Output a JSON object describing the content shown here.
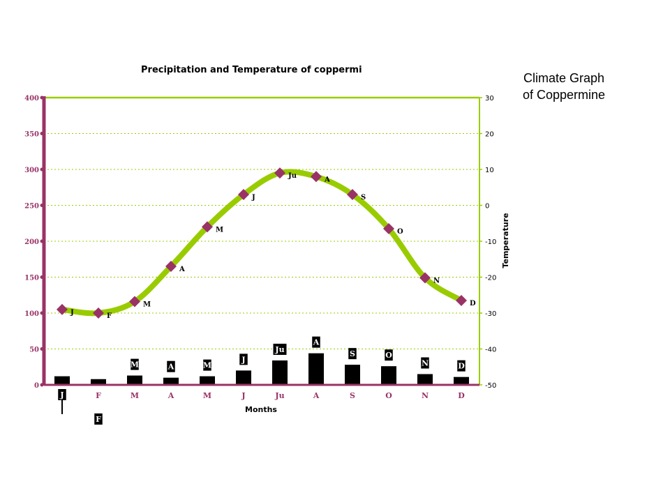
{
  "slide": {
    "side_title_line1": "Climate Graph",
    "side_title_line2": "of Coppermine"
  },
  "chart_data": {
    "type": "bar+line",
    "title": "Precipitation and Temperature of coppermi",
    "xlabel": "Months",
    "ylabel": "",
    "y2label": "Temperature",
    "categories": [
      "J",
      "F",
      "M",
      "A",
      "M",
      "J",
      "Ju",
      "A",
      "S",
      "O",
      "N",
      "D"
    ],
    "ylim": [
      0,
      400
    ],
    "y_ticks": [
      0,
      50,
      100,
      150,
      200,
      250,
      300,
      350,
      400
    ],
    "y2lim": [
      -50,
      30
    ],
    "y2_ticks": [
      -50,
      -40,
      -30,
      -20,
      -10,
      0,
      10,
      20,
      30
    ],
    "grid": true,
    "bar_labels": [
      "J",
      "F",
      "M",
      "A",
      "M",
      "J",
      "Ju",
      "A",
      "S",
      "O",
      "N",
      "D"
    ],
    "point_labels": [
      "J",
      "F",
      "M",
      "A",
      "M",
      "J",
      "Ju",
      "A",
      "S",
      "O",
      "N",
      "D"
    ],
    "series": [
      {
        "kind": "bar",
        "axis": "left",
        "values": [
          12,
          8,
          13,
          10,
          12,
          20,
          34,
          44,
          28,
          26,
          15,
          11
        ]
      },
      {
        "kind": "line",
        "axis": "right",
        "values": [
          -29,
          -30,
          -26.8,
          -17,
          -6,
          3,
          9,
          8,
          3,
          -6.5,
          -20.2,
          -26.5
        ]
      }
    ],
    "colors": {
      "bar": "#000000",
      "line": "#99cc00",
      "marker": "#993366",
      "left_axis": "#993366",
      "right_axis": "#99cc00",
      "grid": "#99cc00",
      "label_bg": "#000000",
      "category_label": "#993366"
    }
  }
}
